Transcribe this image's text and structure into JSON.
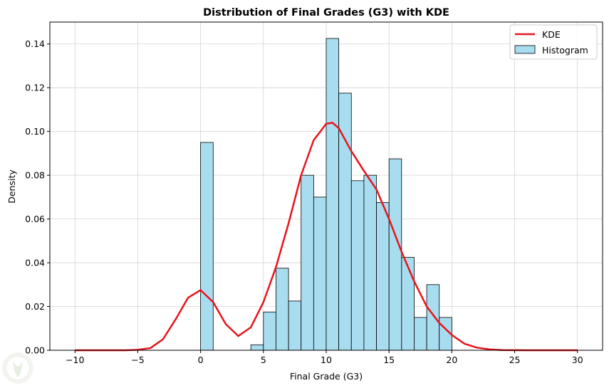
{
  "chart_data": {
    "type": "histogram",
    "title": "Distribution of Final Grades (G3) with KDE",
    "xlabel": "Final Grade (G3)",
    "ylabel": "Density",
    "xlim": [
      -12,
      32
    ],
    "ylim": [
      0,
      0.15
    ],
    "xticks": [
      -10,
      -5,
      0,
      5,
      10,
      15,
      20,
      25,
      30
    ],
    "xtick_labels": [
      "−10",
      "−5",
      "0",
      "5",
      "10",
      "15",
      "20",
      "25",
      "30"
    ],
    "yticks": [
      0.0,
      0.02,
      0.04,
      0.06,
      0.08,
      0.1,
      0.12,
      0.14
    ],
    "ytick_labels": [
      "0.00",
      "0.02",
      "0.04",
      "0.06",
      "0.08",
      "0.10",
      "0.12",
      "0.14"
    ],
    "grid": true,
    "legend_position": "top-right",
    "histogram": {
      "name": "Histogram",
      "color": "#a8dcef",
      "edge_color": "#000000",
      "bins": [
        {
          "x0": 0,
          "x1": 1,
          "density": 0.095
        },
        {
          "x0": 4,
          "x1": 5,
          "density": 0.0025
        },
        {
          "x0": 5,
          "x1": 6,
          "density": 0.0175
        },
        {
          "x0": 6,
          "x1": 7,
          "density": 0.0375
        },
        {
          "x0": 7,
          "x1": 8,
          "density": 0.0225
        },
        {
          "x0": 8,
          "x1": 9,
          "density": 0.08
        },
        {
          "x0": 9,
          "x1": 10,
          "density": 0.07
        },
        {
          "x0": 10,
          "x1": 11,
          "density": 0.1425
        },
        {
          "x0": 11,
          "x1": 12,
          "density": 0.1175
        },
        {
          "x0": 12,
          "x1": 13,
          "density": 0.0775
        },
        {
          "x0": 13,
          "x1": 14,
          "density": 0.08
        },
        {
          "x0": 14,
          "x1": 15,
          "density": 0.0675
        },
        {
          "x0": 15,
          "x1": 16,
          "density": 0.0875
        },
        {
          "x0": 16,
          "x1": 17,
          "density": 0.0425
        },
        {
          "x0": 17,
          "x1": 18,
          "density": 0.015
        },
        {
          "x0": 18,
          "x1": 19,
          "density": 0.03
        },
        {
          "x0": 19,
          "x1": 20,
          "density": 0.015
        }
      ]
    },
    "kde": {
      "name": "KDE",
      "color": "#e8141b",
      "x": [
        -10,
        -8,
        -6,
        -5,
        -4,
        -3,
        -2,
        -1,
        0,
        1,
        2,
        3,
        4,
        5,
        6,
        7,
        8,
        9,
        10,
        10.5,
        11,
        12,
        13,
        14,
        15,
        16,
        17,
        18,
        19,
        20,
        21,
        22,
        23,
        24,
        26,
        28,
        30
      ],
      "y": [
        0,
        0,
        0,
        0.0002,
        0.001,
        0.005,
        0.014,
        0.024,
        0.0275,
        0.022,
        0.012,
        0.0065,
        0.0105,
        0.022,
        0.038,
        0.058,
        0.08,
        0.096,
        0.1035,
        0.104,
        0.1015,
        0.091,
        0.082,
        0.0735,
        0.06,
        0.045,
        0.0315,
        0.02,
        0.0125,
        0.007,
        0.003,
        0.0012,
        0.0004,
        0.0001,
        0,
        0,
        0
      ]
    }
  }
}
